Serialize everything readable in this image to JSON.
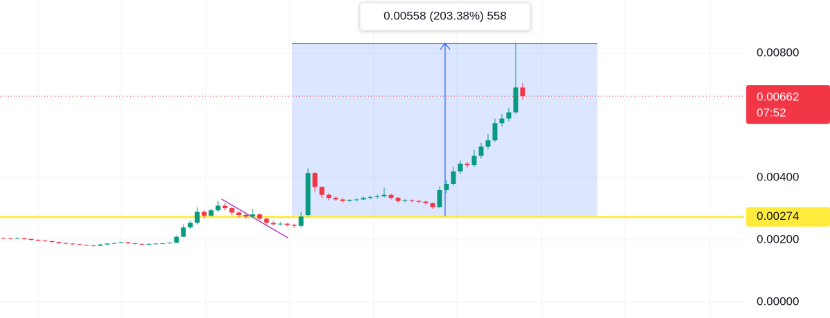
{
  "chart_data": {
    "type": "candlestick",
    "open": [
      0.00206,
      0.00205,
      0.00204,
      0.00206,
      0.00203,
      0.002,
      0.00198,
      0.00196,
      0.00193,
      0.0019,
      0.00188,
      0.00186,
      0.00184,
      0.00182,
      0.00181,
      0.00185,
      0.00188,
      0.0019,
      0.00192,
      0.00189,
      0.00187,
      0.00186,
      0.00187,
      0.00188,
      0.00189,
      0.00191,
      0.0021,
      0.0024,
      0.00255,
      0.0029,
      0.00278,
      0.00295,
      0.0031,
      0.00302,
      0.00288,
      0.0028,
      0.00275,
      0.00282,
      0.00268,
      0.00255,
      0.0025,
      0.00252,
      0.00248,
      0.00245,
      0.0028,
      0.00415,
      0.0037,
      0.00345,
      0.00335,
      0.0033,
      0.00325,
      0.00328,
      0.0033,
      0.00335,
      0.00338,
      0.0034,
      0.00345,
      0.00335,
      0.00325,
      0.00327,
      0.00325,
      0.00323,
      0.00318,
      0.00305,
      0.0036,
      0.0038,
      0.0042,
      0.00445,
      0.0044,
      0.0047,
      0.005,
      0.0052,
      0.00575,
      0.0059,
      0.0061,
      0.0069
    ],
    "high": [
      0.00208,
      0.00207,
      0.00208,
      0.00207,
      0.00204,
      0.00202,
      0.00199,
      0.00197,
      0.00194,
      0.00192,
      0.00189,
      0.00187,
      0.00185,
      0.00184,
      0.00187,
      0.0019,
      0.00192,
      0.00194,
      0.00193,
      0.0019,
      0.00188,
      0.00189,
      0.0019,
      0.00191,
      0.00193,
      0.00215,
      0.0025,
      0.00262,
      0.00305,
      0.00295,
      0.003,
      0.00325,
      0.00318,
      0.00305,
      0.00292,
      0.00286,
      0.003,
      0.00285,
      0.00272,
      0.00262,
      0.00258,
      0.00255,
      0.00252,
      0.0029,
      0.0043,
      0.00418,
      0.00372,
      0.0035,
      0.0034,
      0.00335,
      0.00332,
      0.00335,
      0.0034,
      0.00343,
      0.00346,
      0.00368,
      0.00348,
      0.00338,
      0.00331,
      0.0033,
      0.00328,
      0.00326,
      0.0032,
      0.00372,
      0.00392,
      0.00435,
      0.00455,
      0.00452,
      0.0049,
      0.00512,
      0.0054,
      0.0059,
      0.00605,
      0.00625,
      0.00833,
      0.00705
    ],
    "low": [
      0.00203,
      0.00202,
      0.00203,
      0.00201,
      0.00198,
      0.00196,
      0.00194,
      0.00191,
      0.00188,
      0.00186,
      0.00184,
      0.00182,
      0.0018,
      0.00179,
      0.0018,
      0.00184,
      0.00187,
      0.00189,
      0.00187,
      0.00185,
      0.00184,
      0.00185,
      0.00186,
      0.00187,
      0.00188,
      0.0019,
      0.00208,
      0.00235,
      0.0025,
      0.0027,
      0.00275,
      0.0029,
      0.00295,
      0.0028,
      0.00272,
      0.00268,
      0.0027,
      0.0026,
      0.00248,
      0.00245,
      0.00246,
      0.00243,
      0.00238,
      0.0024,
      0.00275,
      0.00355,
      0.00335,
      0.00328,
      0.00325,
      0.0032,
      0.00321,
      0.00324,
      0.00327,
      0.0033,
      0.00332,
      0.00336,
      0.0033,
      0.0032,
      0.00321,
      0.0032,
      0.00318,
      0.00312,
      0.003,
      0.00303,
      0.0035,
      0.00375,
      0.00412,
      0.00432,
      0.00435,
      0.00462,
      0.00492,
      0.00515,
      0.00565,
      0.0058,
      0.00605,
      0.0065
    ],
    "close": [
      0.00205,
      0.00204,
      0.00206,
      0.00203,
      0.002,
      0.00198,
      0.00196,
      0.00193,
      0.0019,
      0.00188,
      0.00186,
      0.00184,
      0.00182,
      0.00181,
      0.00185,
      0.00188,
      0.0019,
      0.00192,
      0.00189,
      0.00187,
      0.00186,
      0.00187,
      0.00188,
      0.00189,
      0.00191,
      0.0021,
      0.0024,
      0.00255,
      0.0029,
      0.00278,
      0.00295,
      0.0031,
      0.00302,
      0.00288,
      0.0028,
      0.00275,
      0.00282,
      0.00268,
      0.00255,
      0.0025,
      0.00252,
      0.00248,
      0.00245,
      0.00275,
      0.00415,
      0.0037,
      0.00345,
      0.00335,
      0.0033,
      0.00325,
      0.00328,
      0.0033,
      0.00335,
      0.00338,
      0.0034,
      0.00345,
      0.00335,
      0.00325,
      0.00327,
      0.00325,
      0.00323,
      0.00318,
      0.00305,
      0.0036,
      0.0038,
      0.0042,
      0.00445,
      0.0044,
      0.0047,
      0.005,
      0.0052,
      0.00575,
      0.0059,
      0.0061,
      0.0069,
      0.00662
    ],
    "up_color": "#089981",
    "down_color": "#f23645",
    "ylim": [
      -0.000511,
      0.009711
    ],
    "yticks": [
      {
        "value": 0,
        "label": "0.00000"
      },
      {
        "value": 0.002,
        "label": "0.00200"
      },
      {
        "value": 0.004,
        "label": "0.00400"
      },
      {
        "value": 0.008,
        "label": "0.00800"
      }
    ],
    "grid": true,
    "horizontal_line": {
      "value": 0.00274,
      "color": "#ffeb3b"
    },
    "last_price": {
      "value": 0.00662,
      "countdown": "07:52"
    },
    "measure": {
      "change": 0.00558,
      "label": "0.00558 (203.38%) 558"
    }
  }
}
